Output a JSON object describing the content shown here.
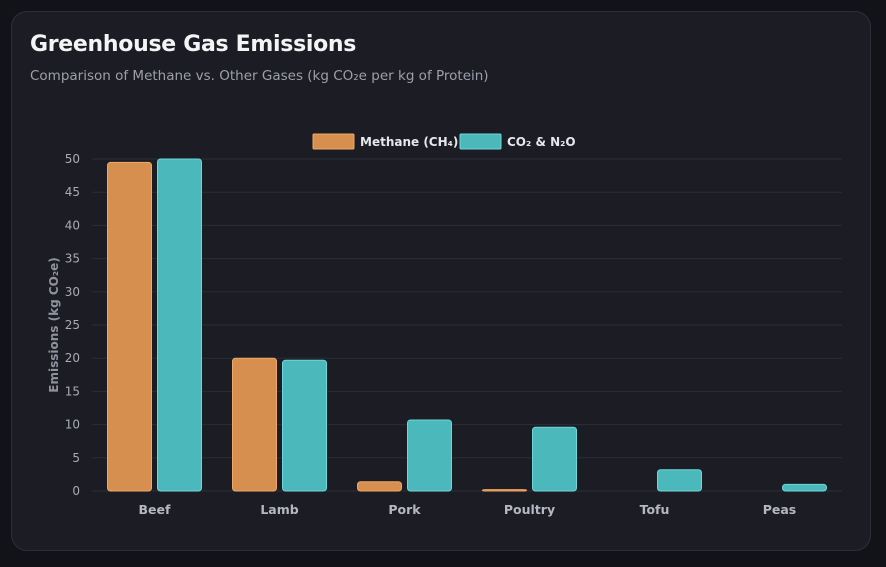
{
  "header": {
    "title": "Greenhouse Gas Emissions",
    "subtitle": "Comparison of Methane vs. Other Gases (kg CO₂e per kg of Protein)"
  },
  "colors": {
    "methane": "#d78f4f",
    "co2_n2o": "#4bb8bc",
    "methane_border": "#f0a866",
    "co2_border": "#6fd6d9",
    "grid": "#2b2d36"
  },
  "chart_data": {
    "type": "bar",
    "categories": [
      "Beef",
      "Lamb",
      "Pork",
      "Poultry",
      "Tofu",
      "Peas"
    ],
    "series": [
      {
        "name": "Methane (CH₄)",
        "values": [
          49.5,
          20,
          1.4,
          0.2,
          0,
          0
        ]
      },
      {
        "name": "CO₂ & N₂O",
        "values": [
          50,
          19.7,
          10.7,
          9.6,
          3.2,
          1
        ]
      }
    ],
    "ylabel": "Emissions (kg CO₂e)",
    "ylim": [
      0,
      50
    ],
    "yticks": [
      0,
      5,
      10,
      15,
      20,
      25,
      30,
      35,
      40,
      45,
      50
    ],
    "grid": true,
    "legend_position": "top-center"
  }
}
